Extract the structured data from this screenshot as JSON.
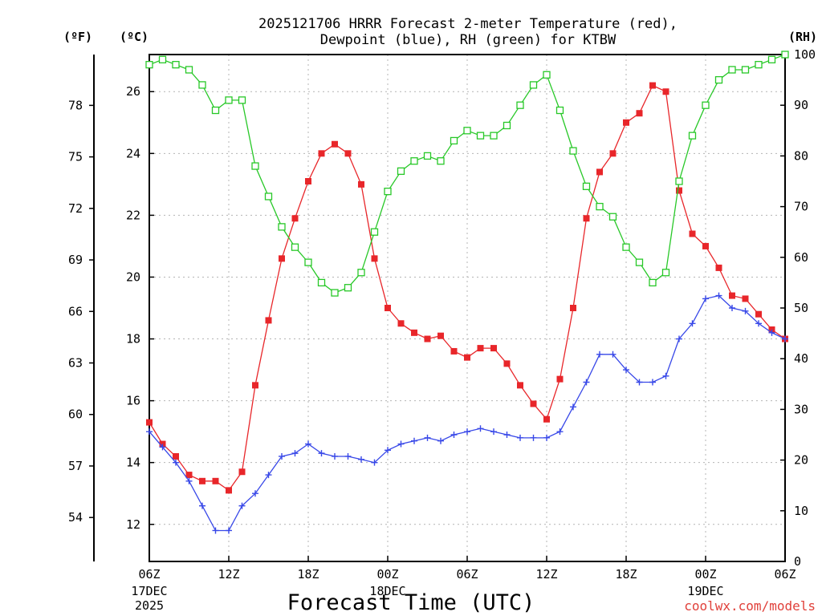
{
  "chart_data": {
    "type": "line",
    "title": "2025121706 HRRR Forecast 2-meter Temperature (red), Dewpoint (blue), RH (green) for KTBW",
    "title_lines": [
      "2025121706 HRRR Forecast 2-meter Temperature (red),",
      "Dewpoint (blue), RH (green) for KTBW"
    ],
    "xlabel": "Forecast Time (UTC)",
    "credit": "coolwx.com/models",
    "units": {
      "fahrenheit": "(ºF)",
      "celsius": "(ºC)",
      "rh": "(RH)"
    },
    "x_range_hours": [
      0,
      48
    ],
    "y_celsius_range": [
      10.8,
      27.2
    ],
    "y_rh_range": [
      0,
      100
    ],
    "x_ticks": [
      {
        "hour": 0,
        "label": "06Z",
        "sub1": "17DEC",
        "sub2": "2025"
      },
      {
        "hour": 6,
        "label": "12Z"
      },
      {
        "hour": 12,
        "label": "18Z"
      },
      {
        "hour": 18,
        "label": "00Z",
        "sub1": "18DEC"
      },
      {
        "hour": 24,
        "label": "06Z"
      },
      {
        "hour": 30,
        "label": "12Z"
      },
      {
        "hour": 36,
        "label": "18Z"
      },
      {
        "hour": 42,
        "label": "00Z",
        "sub1": "19DEC"
      },
      {
        "hour": 48,
        "label": "06Z"
      }
    ],
    "celsius_ticks": [
      {
        "v": 12,
        "label": "12"
      },
      {
        "v": 14,
        "label": "14"
      },
      {
        "v": 16,
        "label": "16"
      },
      {
        "v": 18,
        "label": "18"
      },
      {
        "v": 20,
        "label": "20"
      },
      {
        "v": 22,
        "label": "22"
      },
      {
        "v": 24,
        "label": "24"
      },
      {
        "v": 26,
        "label": "26"
      }
    ],
    "fahrenheit_ticks": [
      {
        "f": 54,
        "label": "54"
      },
      {
        "f": 57,
        "label": "57"
      },
      {
        "f": 60,
        "label": "60"
      },
      {
        "f": 63,
        "label": "63"
      },
      {
        "f": 66,
        "label": "66"
      },
      {
        "f": 69,
        "label": "69"
      },
      {
        "f": 72,
        "label": "72"
      },
      {
        "f": 75,
        "label": "75"
      },
      {
        "f": 78,
        "label": "78"
      }
    ],
    "rh_ticks": [
      {
        "v": 0,
        "label": "0"
      },
      {
        "v": 10,
        "label": "10"
      },
      {
        "v": 20,
        "label": "20"
      },
      {
        "v": 30,
        "label": "30"
      },
      {
        "v": 40,
        "label": "40"
      },
      {
        "v": 50,
        "label": "50"
      },
      {
        "v": 60,
        "label": "60"
      },
      {
        "v": 70,
        "label": "70"
      },
      {
        "v": 80,
        "label": "80"
      },
      {
        "v": 90,
        "label": "90"
      },
      {
        "v": 100,
        "label": "100"
      }
    ],
    "series": [
      {
        "name": "Temperature",
        "axis": "celsius",
        "color": "#e8262a",
        "marker": "filled-square",
        "values": [
          15.3,
          14.6,
          14.2,
          13.6,
          13.4,
          13.4,
          13.1,
          13.7,
          16.5,
          18.6,
          20.6,
          21.9,
          23.1,
          24.0,
          24.3,
          24.0,
          23.0,
          20.6,
          19.0,
          18.5,
          18.2,
          18.0,
          18.1,
          17.6,
          17.4,
          17.7,
          17.7,
          17.2,
          16.5,
          15.9,
          15.4,
          16.7,
          19.0,
          21.9,
          23.4,
          24.0,
          25.0,
          25.3,
          26.2,
          26.0,
          22.8,
          21.4,
          21.0,
          20.3,
          19.4,
          19.3,
          18.8,
          18.3,
          18.0
        ]
      },
      {
        "name": "Dewpoint",
        "axis": "celsius",
        "color": "#3848e8",
        "marker": "plus",
        "values": [
          15.0,
          14.5,
          14.0,
          13.4,
          12.6,
          11.8,
          11.8,
          12.6,
          13.0,
          13.6,
          14.2,
          14.3,
          14.6,
          14.3,
          14.2,
          14.2,
          14.1,
          14.0,
          14.4,
          14.6,
          14.7,
          14.8,
          14.7,
          14.9,
          15.0,
          15.1,
          15.0,
          14.9,
          14.8,
          14.8,
          14.8,
          15.0,
          15.8,
          16.6,
          17.5,
          17.5,
          17.0,
          16.6,
          16.6,
          16.8,
          18.0,
          18.5,
          19.3,
          19.4,
          19.0,
          18.9,
          18.5,
          18.2,
          18.0
        ]
      },
      {
        "name": "Relative Humidity",
        "axis": "rh",
        "color": "#28c828",
        "marker": "open-square",
        "values": [
          98,
          99,
          98,
          97,
          94,
          89,
          91,
          91,
          78,
          72,
          66,
          62,
          59,
          55,
          53,
          54,
          57,
          65,
          73,
          77,
          79,
          80,
          79,
          83,
          85,
          84,
          84,
          86,
          90,
          94,
          96,
          89,
          81,
          74,
          70,
          68,
          62,
          59,
          55,
          57,
          75,
          84,
          90,
          95,
          97,
          97,
          98,
          99,
          100
        ]
      }
    ]
  }
}
